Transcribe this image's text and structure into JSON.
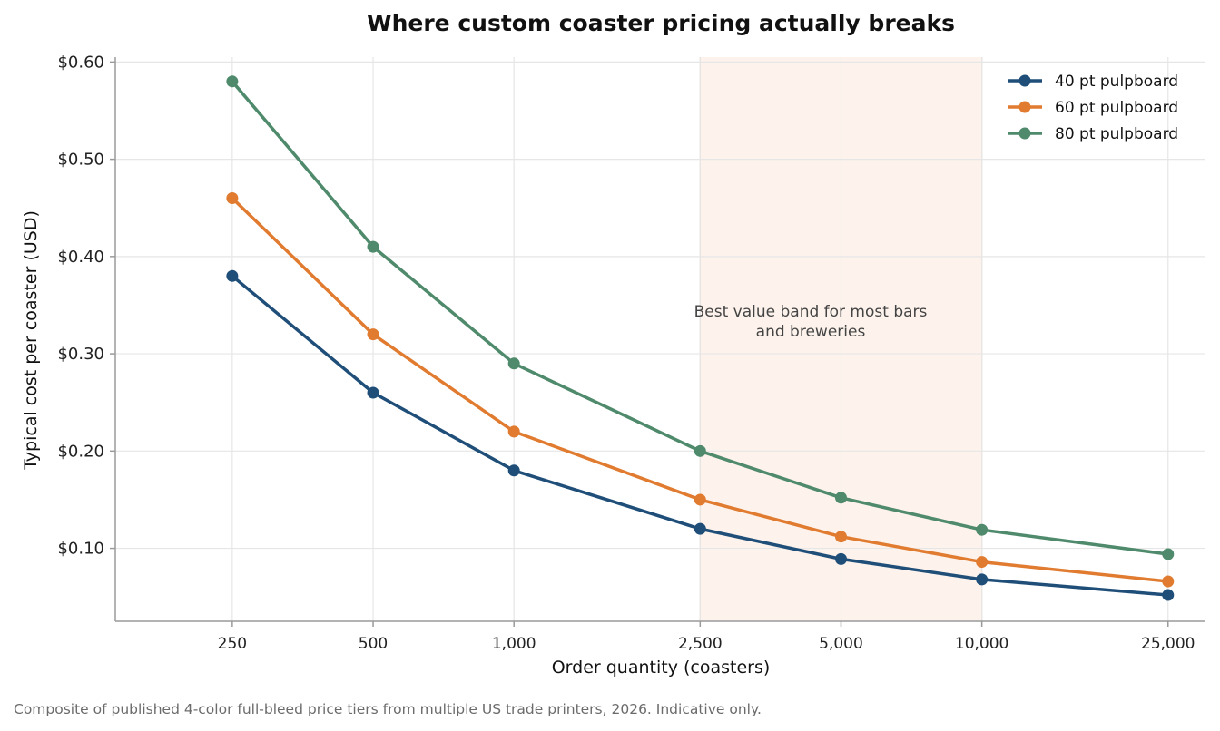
{
  "chart_data": {
    "type": "line",
    "title": "Where custom coaster pricing actually breaks",
    "xlabel": "Order quantity (coasters)",
    "ylabel": "Typical cost per coaster (USD)",
    "x_scale": "log",
    "categories": [
      "250",
      "500",
      "1,000",
      "2,500",
      "5,000",
      "10,000",
      "25,000"
    ],
    "x": [
      250,
      500,
      1000,
      2500,
      5000,
      10000,
      25000
    ],
    "y_ticks": [
      0.1,
      0.2,
      0.3,
      0.4,
      0.5,
      0.6
    ],
    "y_tick_labels": [
      "$0.10",
      "$0.20",
      "$0.30",
      "$0.40",
      "$0.50",
      "$0.60"
    ],
    "ylim": [
      0.025,
      0.605
    ],
    "grid": true,
    "legend_position": "top-right",
    "series": [
      {
        "name": "40 pt pulpboard",
        "color": "#1f4e79",
        "values": [
          0.38,
          0.26,
          0.18,
          0.12,
          0.089,
          0.068,
          0.052
        ]
      },
      {
        "name": "60 pt pulpboard",
        "color": "#e07b30",
        "values": [
          0.46,
          0.32,
          0.22,
          0.15,
          0.112,
          0.086,
          0.066
        ]
      },
      {
        "name": "80 pt pulpboard",
        "color": "#4e8a6b",
        "values": [
          0.58,
          0.41,
          0.29,
          0.2,
          0.152,
          0.119,
          0.094
        ]
      }
    ],
    "highlight_band": {
      "x_range": [
        2500,
        10000
      ],
      "color": "#fdf3ec",
      "label_lines": [
        "Best value band for most bars",
        "and breweries"
      ]
    },
    "footnote": "Composite of published 4-color full-bleed price tiers from multiple US trade printers, 2026. Indicative only."
  }
}
